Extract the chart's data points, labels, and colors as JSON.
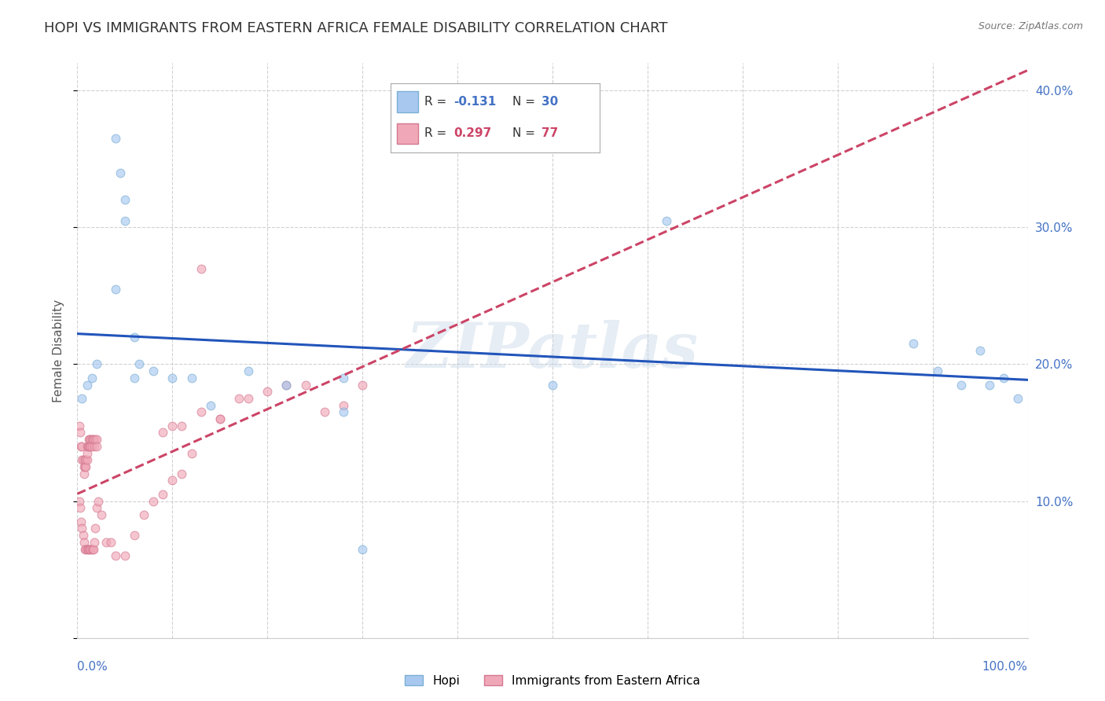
{
  "title": "HOPI VS IMMIGRANTS FROM EASTERN AFRICA FEMALE DISABILITY CORRELATION CHART",
  "source": "Source: ZipAtlas.com",
  "ylabel": "Female Disability",
  "watermark": "ZIPatlas",
  "legend_1_r": "-0.131",
  "legend_1_n": "30",
  "legend_2_r": "0.297",
  "legend_2_n": "77",
  "hopi_color": "#a8c8f0",
  "hopi_edge_color": "#7bafd4",
  "imm_color": "#f0a8b8",
  "imm_edge_color": "#d47890",
  "trend_hopi_color": "#2255bb",
  "trend_imm_color": "#cc4466",
  "background_color": "#ffffff",
  "grid_color": "#cccccc",
  "hopi_x": [
    0.04,
    0.045,
    0.05,
    0.05,
    0.04,
    0.06,
    0.065,
    0.06,
    0.08,
    0.1,
    0.12,
    0.14,
    0.18,
    0.22,
    0.28,
    0.5,
    0.62,
    0.88,
    0.905,
    0.93,
    0.95,
    0.96,
    0.975,
    0.99,
    0.28,
    0.3,
    0.005,
    0.01,
    0.015,
    0.02
  ],
  "hopi_y": [
    0.365,
    0.34,
    0.32,
    0.305,
    0.255,
    0.22,
    0.2,
    0.19,
    0.195,
    0.19,
    0.19,
    0.17,
    0.195,
    0.185,
    0.165,
    0.185,
    0.305,
    0.215,
    0.195,
    0.185,
    0.21,
    0.185,
    0.19,
    0.175,
    0.19,
    0.065,
    0.175,
    0.185,
    0.19,
    0.2
  ],
  "imm_x": [
    0.002,
    0.003,
    0.004,
    0.005,
    0.005,
    0.006,
    0.007,
    0.007,
    0.008,
    0.008,
    0.009,
    0.009,
    0.01,
    0.01,
    0.01,
    0.011,
    0.012,
    0.012,
    0.013,
    0.013,
    0.014,
    0.014,
    0.015,
    0.015,
    0.016,
    0.017,
    0.018,
    0.019,
    0.02,
    0.02,
    0.002,
    0.003,
    0.004,
    0.005,
    0.006,
    0.007,
    0.008,
    0.009,
    0.01,
    0.011,
    0.012,
    0.013,
    0.014,
    0.015,
    0.016,
    0.017,
    0.018,
    0.019,
    0.02,
    0.022,
    0.025,
    0.03,
    0.035,
    0.04,
    0.05,
    0.06,
    0.07,
    0.08,
    0.09,
    0.1,
    0.11,
    0.12,
    0.13,
    0.15,
    0.17,
    0.18,
    0.2,
    0.22,
    0.24,
    0.28,
    0.3,
    0.1,
    0.13,
    0.15,
    0.11,
    0.09,
    0.26
  ],
  "imm_y": [
    0.155,
    0.15,
    0.14,
    0.14,
    0.13,
    0.13,
    0.125,
    0.12,
    0.125,
    0.13,
    0.13,
    0.125,
    0.13,
    0.135,
    0.14,
    0.14,
    0.145,
    0.14,
    0.145,
    0.14,
    0.145,
    0.14,
    0.145,
    0.14,
    0.145,
    0.145,
    0.14,
    0.145,
    0.145,
    0.14,
    0.1,
    0.095,
    0.085,
    0.08,
    0.075,
    0.07,
    0.065,
    0.065,
    0.065,
    0.065,
    0.065,
    0.065,
    0.065,
    0.065,
    0.065,
    0.065,
    0.07,
    0.08,
    0.095,
    0.1,
    0.09,
    0.07,
    0.07,
    0.06,
    0.06,
    0.075,
    0.09,
    0.1,
    0.105,
    0.115,
    0.12,
    0.135,
    0.27,
    0.16,
    0.175,
    0.175,
    0.18,
    0.185,
    0.185,
    0.17,
    0.185,
    0.155,
    0.165,
    0.16,
    0.155,
    0.15,
    0.165
  ],
  "xlim": [
    0,
    1.0
  ],
  "ylim": [
    0,
    0.42
  ],
  "ytick_vals": [
    0.0,
    0.1,
    0.2,
    0.3,
    0.4
  ],
  "ytick_labels_right": [
    "",
    "10.0%",
    "20.0%",
    "30.0%",
    "40.0%"
  ],
  "xtick_vals": [
    0,
    0.1,
    0.2,
    0.3,
    0.4,
    0.5,
    0.6,
    0.7,
    0.8,
    0.9,
    1.0
  ],
  "title_fontsize": 13,
  "axis_label_fontsize": 11,
  "tick_fontsize": 11,
  "legend_fontsize": 11,
  "marker_size": 60,
  "marker_alpha": 0.65,
  "trend_linewidth": 2.2
}
